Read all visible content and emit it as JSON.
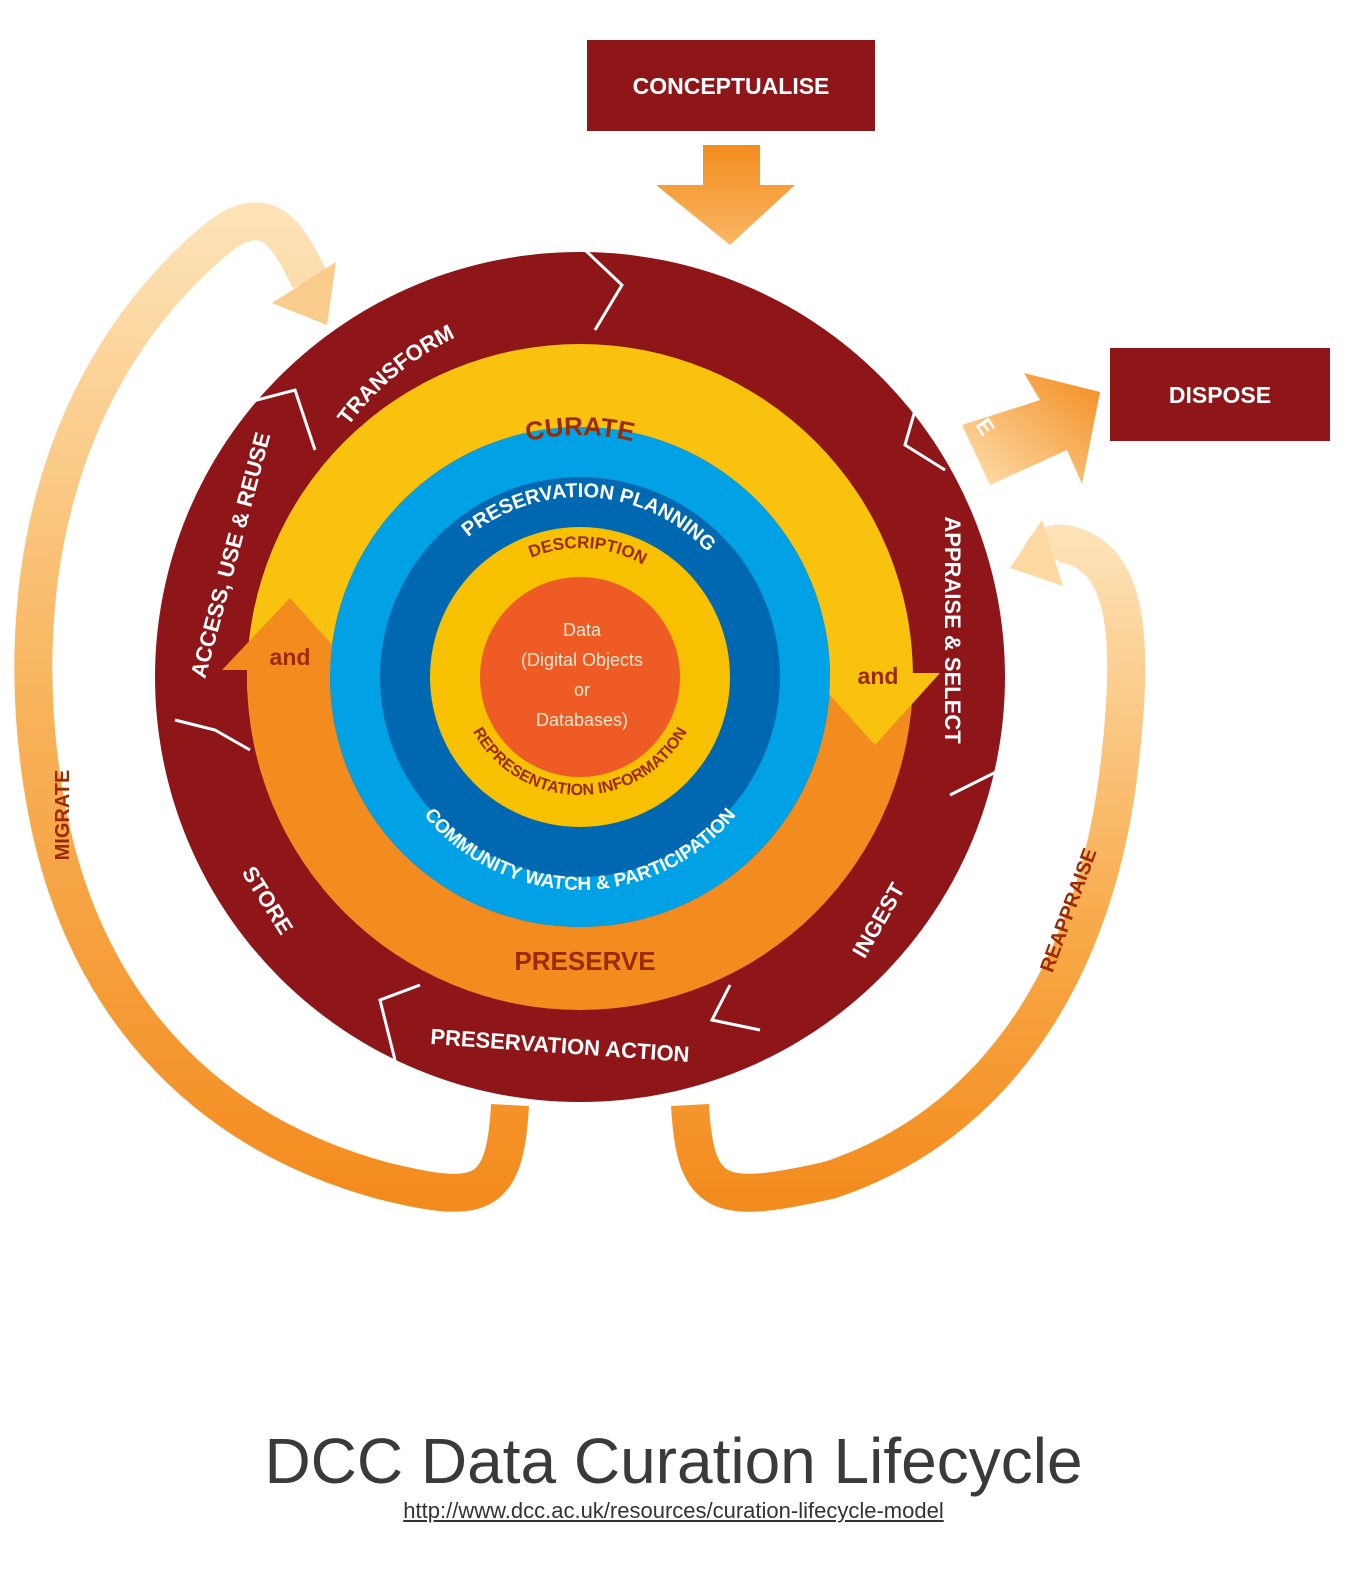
{
  "colors": {
    "maroon": "#8e1518",
    "yellow": "#f9c20f",
    "orange": "#f38c1f",
    "light_blue": "#00a2e5",
    "dark_blue": "#0067b1",
    "inner_yellow": "#f7c000",
    "core_orange": "#ef5b24",
    "label_brown": "#9c2a00",
    "white": "#ffffff"
  },
  "boxes": {
    "conceptualise": "CONCEPTUALISE",
    "dispose": "DISPOSE"
  },
  "outer_ring": {
    "transform": "TRANSFORM",
    "create_or_receive": "CREATE OR RECEIVE",
    "appraise_select": "APPRAISE & SELECT",
    "ingest": "INGEST",
    "preservation_action": "PRESERVATION ACTION",
    "store": "STORE",
    "access_use_reuse": "ACCESS, USE & REUSE"
  },
  "middle_ring": {
    "curate": "CURATE",
    "preserve": "PRESERVE",
    "and_left": "and",
    "and_right": "and"
  },
  "blue_ring": {
    "preservation_planning": "PRESERVATION PLANNING",
    "community_watch": "COMMUNITY WATCH & PARTICIPATION"
  },
  "inner_ring": {
    "description": "DESCRIPTION",
    "representation_information": "REPRESENTATION INFORMATION"
  },
  "core": {
    "line1": "Data",
    "line2": "(Digital Objects",
    "line3": "or",
    "line4": "Databases)"
  },
  "outer_arrows": {
    "migrate": "MIGRATE",
    "reappraise": "REAPPRAISE"
  },
  "caption": {
    "title": "DCC Data Curation Lifecycle",
    "url": "http://www.dcc.ac.uk/resources/curation-lifecycle-model"
  }
}
